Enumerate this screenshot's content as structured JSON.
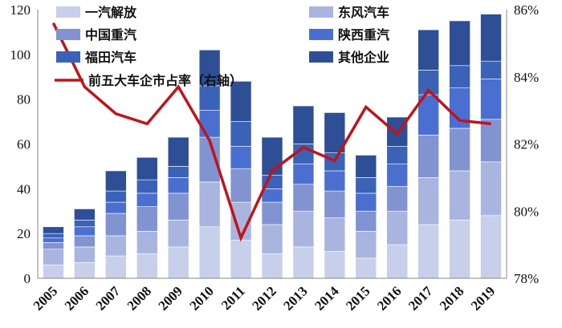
{
  "chart_data": {
    "type": "bar",
    "stacked": true,
    "categories": [
      "2005",
      "2006",
      "2007",
      "2008",
      "2009",
      "2010",
      "2011",
      "2012",
      "2013",
      "2014",
      "2015",
      "2016",
      "2017",
      "2018",
      "2019"
    ],
    "series": [
      {
        "name": "一汽解放",
        "color": "#c7cfea",
        "values": [
          6,
          7,
          10,
          11,
          14,
          23,
          17,
          11,
          14,
          12,
          9,
          15,
          24,
          26,
          28
        ]
      },
      {
        "name": "东风汽车",
        "color": "#a9b5de",
        "values": [
          7,
          7,
          9,
          10,
          12,
          20,
          17,
          13,
          16,
          15,
          12,
          15,
          21,
          22,
          24
        ]
      },
      {
        "name": "中国重汽",
        "color": "#8194d1",
        "values": [
          3,
          5,
          10,
          11,
          12,
          20,
          15,
          10,
          12,
          12,
          9,
          11,
          19,
          19,
          19
        ]
      },
      {
        "name": "陕西重汽",
        "color": "#4a6fd1",
        "values": [
          2,
          4,
          5,
          6,
          7,
          12,
          10,
          6,
          9,
          9,
          8,
          10,
          18,
          18,
          18
        ]
      },
      {
        "name": "福田汽车",
        "color": "#3a63b8",
        "values": [
          2,
          3,
          5,
          6,
          5,
          11,
          11,
          6,
          9,
          8,
          7,
          8,
          11,
          10,
          8
        ]
      },
      {
        "name": "其他企业",
        "color": "#2e4f96",
        "values": [
          3,
          5,
          9,
          10,
          13,
          16,
          18,
          17,
          17,
          18,
          10,
          13,
          18,
          20,
          21
        ]
      }
    ],
    "line_series": {
      "name": "前五大车企市占率（右轴）",
      "color": "#c0141b",
      "values": [
        85.6,
        83.7,
        82.9,
        82.6,
        83.7,
        82.1,
        79.2,
        81.2,
        81.9,
        81.5,
        83.1,
        82.3,
        83.6,
        82.7,
        82.6
      ]
    },
    "y_left": {
      "min": 0,
      "max": 120,
      "ticks": [
        "0",
        "20",
        "40",
        "60",
        "80",
        "100",
        "120"
      ]
    },
    "y_right": {
      "min": 78,
      "max": 86,
      "ticks": [
        "78%",
        "80%",
        "82%",
        "84%",
        "86%"
      ]
    },
    "legend_position": "top",
    "grid": false
  }
}
